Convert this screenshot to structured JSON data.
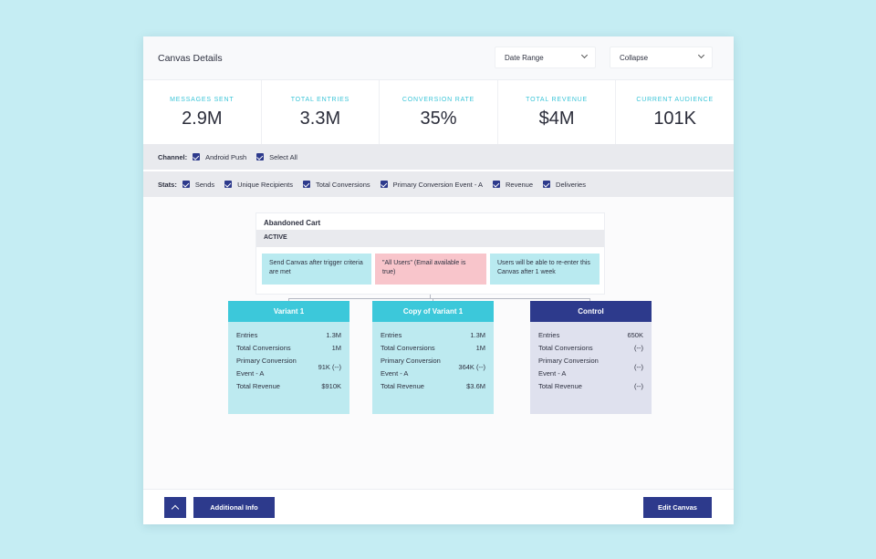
{
  "header": {
    "title": "Canvas Details",
    "date_range_label": "Date Range",
    "collapse_label": "Collapse"
  },
  "stats": [
    {
      "label": "MESSAGES SENT",
      "value": "2.9M"
    },
    {
      "label": "TOTAL ENTRIES",
      "value": "3.3M"
    },
    {
      "label": "CONVERSION RATE",
      "value": "35%"
    },
    {
      "label": "TOTAL REVENUE",
      "value": "$4M"
    },
    {
      "label": "CURRENT AUDIENCE",
      "value": "101K"
    }
  ],
  "channel": {
    "label": "Channel:",
    "options": [
      "Android Push",
      "Select All"
    ]
  },
  "stats_filter": {
    "label": "Stats:",
    "options": [
      "Sends",
      "Unique Recipients",
      "Total Conversions",
      "Primary Conversion Event - A",
      "Revenue",
      "Deliveries"
    ]
  },
  "canvas": {
    "name": "Abandoned Cart",
    "status": "ACTIVE",
    "rules": [
      "Send Canvas after trigger criteria are met",
      "\"All Users\" (Email available is true)",
      "Users will be able to re-enter this Canvas after 1 week"
    ]
  },
  "variants": [
    {
      "name": "Variant 1",
      "entries_label": "Entries",
      "entries": "1.3M",
      "conversions_label": "Total Conversions",
      "conversions": "1M",
      "primary_label_1": "Primary Conversion",
      "primary_label_2": "Event - A",
      "primary": "91K (--)",
      "revenue_label": "Total Revenue",
      "revenue": "$910K"
    },
    {
      "name": "Copy of Variant 1",
      "entries_label": "Entries",
      "entries": "1.3M",
      "conversions_label": "Total Conversions",
      "conversions": "1M",
      "primary_label_1": "Primary Conversion",
      "primary_label_2": "Event - A",
      "primary": "364K (--)",
      "revenue_label": "Total Revenue",
      "revenue": "$3.6M"
    },
    {
      "name": "Control",
      "entries_label": "Entries",
      "entries": "650K",
      "conversions_label": "Total Conversions",
      "conversions": "(--)",
      "primary_label_1": "Primary Conversion",
      "primary_label_2": "Event - A",
      "primary": "(--)",
      "revenue_label": "Total Revenue",
      "revenue": "(--)"
    }
  ],
  "footer": {
    "additional_info_label": "Additional Info",
    "edit_canvas_label": "Edit Canvas"
  },
  "colors": {
    "background": "#c5edf3",
    "accent_teal": "#3cc8da",
    "navy": "#2d3a8c",
    "pink": "#f8c5cb"
  }
}
